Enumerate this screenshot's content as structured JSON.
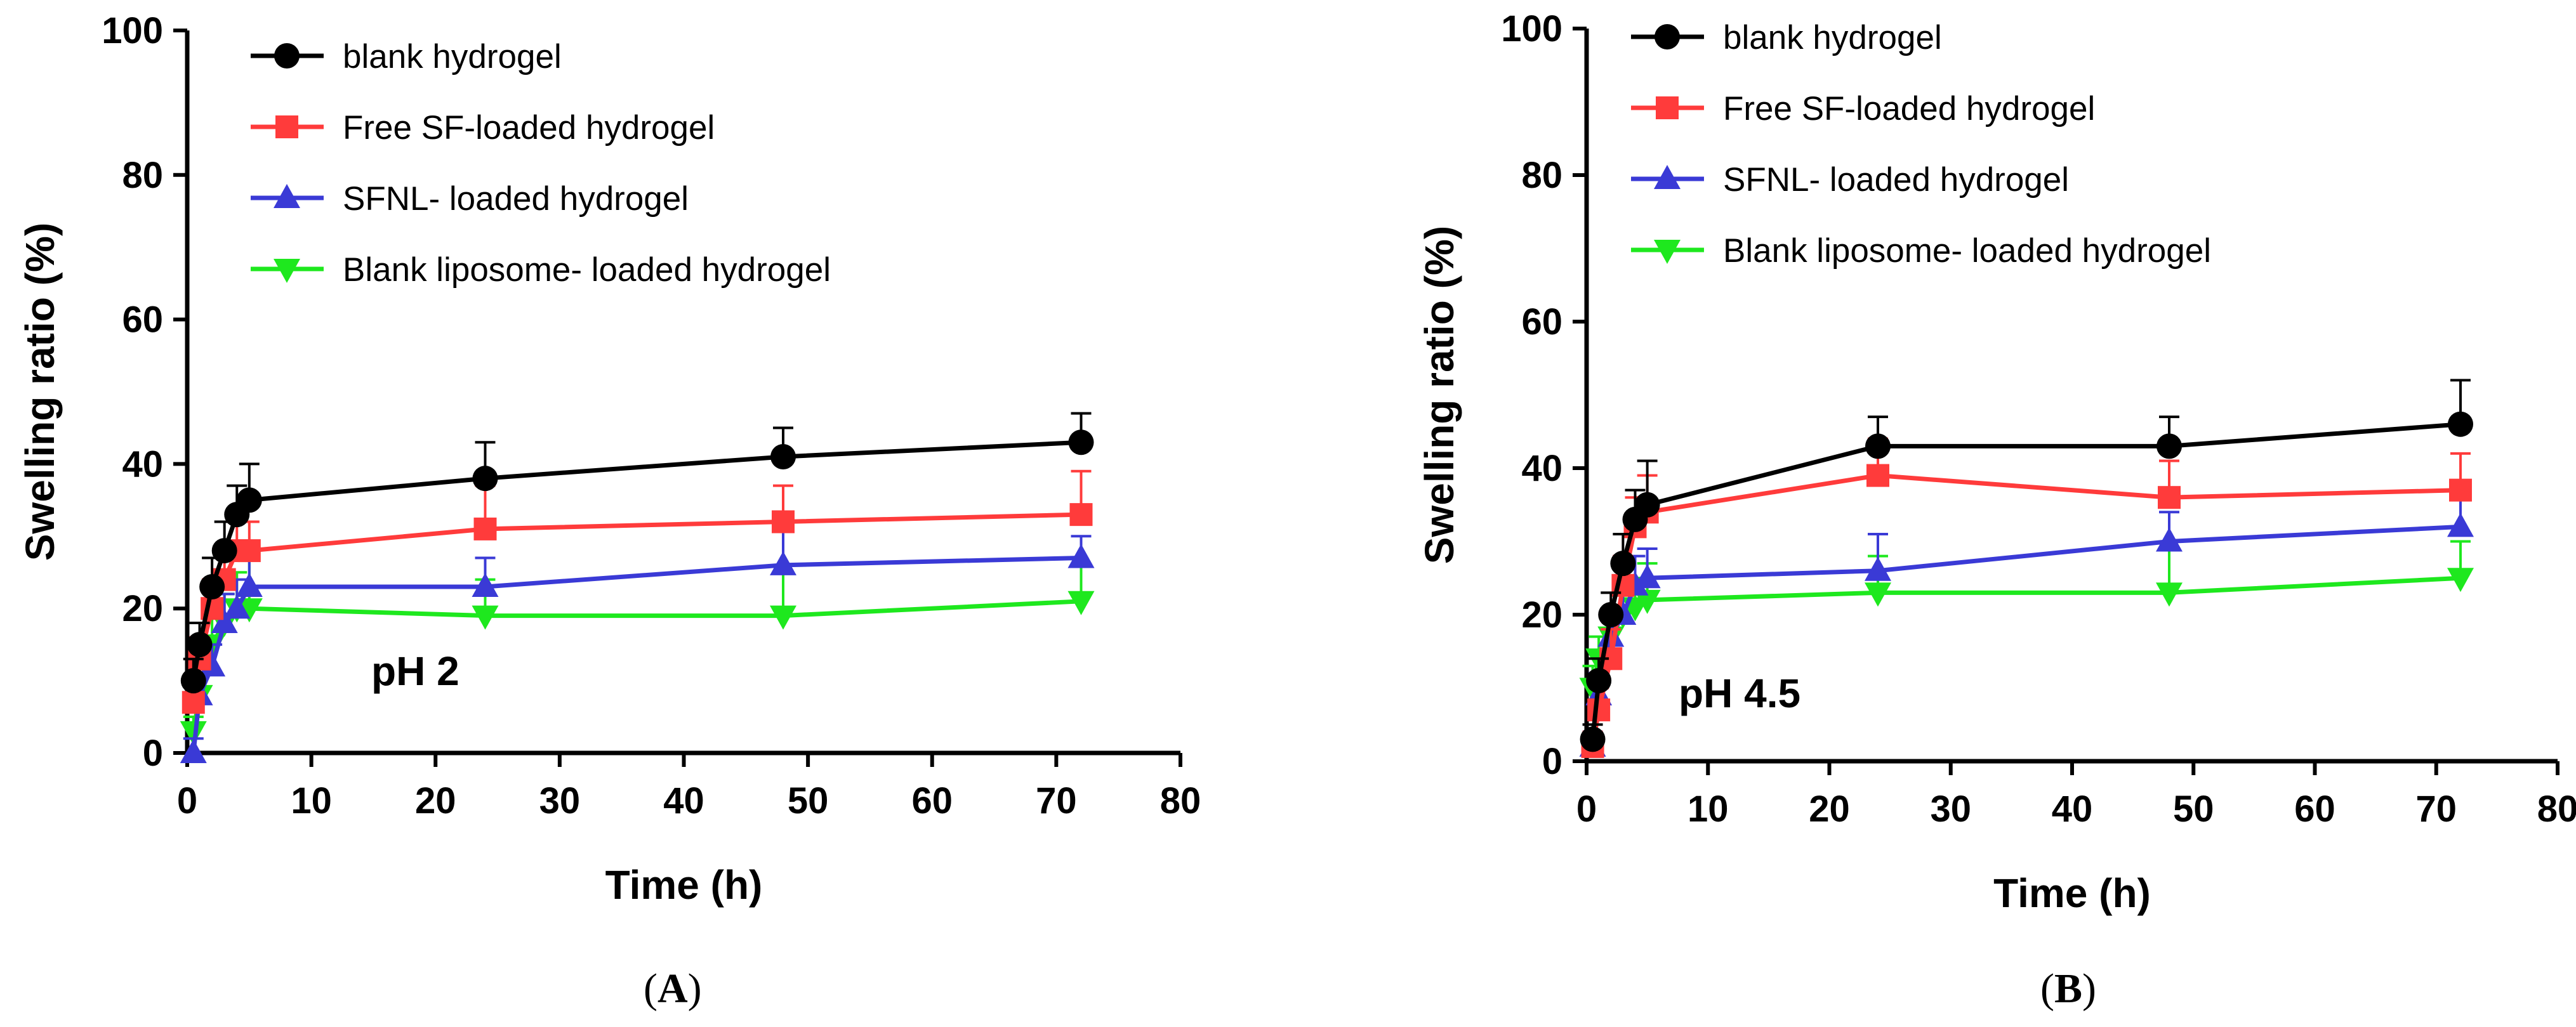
{
  "colors": {
    "blank hydrogel": "#000000",
    "Free SF-loaded hydrogel": "#ff3b3b",
    "SFNL- loaded hydrogel": "#3a3ad6",
    "Blank liposome- loaded hydrogel": "#1ee81e"
  },
  "markers": {
    "blank hydrogel": "circle",
    "Free SF-loaded hydrogel": "square",
    "SFNL- loaded hydrogel": "triangle-up",
    "Blank liposome- loaded hydrogel": "triangle-down"
  },
  "chart_data": [
    {
      "type": "line",
      "panel_label": "A",
      "annotation": "pH 2",
      "title": "",
      "xlabel": "Time (h)",
      "ylabel": "Swelling ratio (%)",
      "xlim": [
        0,
        80
      ],
      "ylim": [
        0,
        100
      ],
      "xticks": [
        0,
        10,
        20,
        30,
        40,
        50,
        60,
        70,
        80
      ],
      "yticks": [
        0,
        20,
        40,
        60,
        80,
        100
      ],
      "legend_position": "top-left",
      "series": [
        {
          "name": "blank hydrogel",
          "x": [
            0.5,
            1,
            2,
            3,
            4,
            5,
            24,
            48,
            72
          ],
          "y": [
            10,
            15,
            23,
            28,
            33,
            35,
            38,
            41,
            43
          ],
          "err": [
            3,
            3,
            4,
            4,
            4,
            5,
            5,
            4,
            4
          ]
        },
        {
          "name": "Free SF-loaded hydrogel",
          "x": [
            0.5,
            1,
            2,
            3,
            4,
            5,
            24,
            48,
            72
          ],
          "y": [
            7,
            13,
            20,
            24,
            28,
            28,
            31,
            32,
            33
          ],
          "err": [
            3,
            3,
            4,
            4,
            4,
            4,
            6,
            5,
            6
          ]
        },
        {
          "name": "SFNL- loaded hydrogel",
          "x": [
            0.5,
            1,
            2,
            3,
            4,
            5,
            24,
            48,
            72
          ],
          "y": [
            0,
            8,
            12,
            18,
            20,
            23,
            23,
            26,
            27
          ],
          "err": [
            2,
            3,
            3,
            4,
            4,
            5,
            4,
            5,
            3
          ]
        },
        {
          "name": "Blank liposome- loaded hydrogel",
          "x": [
            0.5,
            1,
            2,
            3,
            4,
            5,
            24,
            48,
            72
          ],
          "y": [
            3,
            8,
            15,
            18,
            20,
            20,
            19,
            19,
            21
          ],
          "err": [
            2,
            3,
            4,
            4,
            5,
            7,
            5,
            6,
            5
          ]
        }
      ]
    },
    {
      "type": "line",
      "panel_label": "B",
      "annotation": "pH 4.5",
      "title": "",
      "xlabel": "Time (h)",
      "ylabel": "Swelling ratio (%)",
      "xlim": [
        0,
        80
      ],
      "ylim": [
        0,
        100
      ],
      "xticks": [
        0,
        10,
        20,
        30,
        40,
        50,
        60,
        70,
        80
      ],
      "yticks": [
        0,
        20,
        40,
        60,
        80,
        100
      ],
      "legend_position": "top-left",
      "series": [
        {
          "name": "blank hydrogel",
          "x": [
            0.5,
            1,
            2,
            3,
            4,
            5,
            24,
            48,
            72
          ],
          "y": [
            3,
            11,
            20,
            27,
            33,
            35,
            43,
            43,
            46
          ],
          "err": [
            2,
            3,
            3,
            4,
            4,
            6,
            4,
            4,
            6
          ]
        },
        {
          "name": "Free SF-loaded hydrogel",
          "x": [
            0.5,
            1,
            2,
            3,
            4,
            5,
            24,
            48,
            72
          ],
          "y": [
            2,
            7,
            14,
            24,
            32,
            34,
            39,
            36,
            37
          ],
          "err": [
            2,
            3,
            4,
            4,
            4,
            5,
            5,
            5,
            5
          ]
        },
        {
          "name": "SFNL- loaded hydrogel",
          "x": [
            0.5,
            1,
            2,
            3,
            4,
            5,
            24,
            48,
            72
          ],
          "y": [
            2,
            9,
            17,
            20,
            24,
            25,
            26,
            30,
            32
          ],
          "err": [
            2,
            3,
            3,
            3,
            4,
            4,
            5,
            4,
            4
          ]
        },
        {
          "name": "Blank liposome- loaded hydrogel",
          "x": [
            0.5,
            1,
            2,
            3,
            4,
            5,
            24,
            48,
            72
          ],
          "y": [
            10,
            14,
            17,
            20,
            21,
            22,
            23,
            23,
            25
          ],
          "err": [
            3,
            3,
            3,
            3,
            4,
            5,
            5,
            6,
            5
          ]
        }
      ]
    }
  ]
}
